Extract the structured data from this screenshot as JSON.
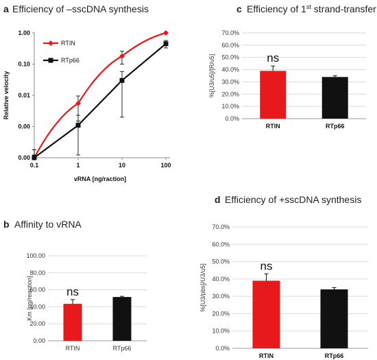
{
  "panels": {
    "a": {
      "letter": "a",
      "title": "Efficiency of –sscDNA synthesis"
    },
    "b": {
      "letter": "b",
      "title": "Affinity to vRNA"
    },
    "c": {
      "letter": "c",
      "title_main": "Efficiency of 1",
      "title_sup": "st",
      "title_rest": " strand-transfer"
    },
    "d": {
      "letter": "d",
      "title": "Efficiency of +sscDNA synthesis"
    }
  },
  "colors": {
    "RTIN": "#e8191b",
    "RTp66": "#111111",
    "gridline": "#d9d9d9"
  },
  "chart_data": [
    {
      "id": "a",
      "type": "line",
      "title": "Efficiency of –sscDNA synthesis",
      "xlabel": "vRNA [ng/raction]",
      "ylabel": "Relative velocity",
      "xscale": "log",
      "yscale": "log",
      "x_ticks": [
        "0.1",
        "1",
        "10",
        "100"
      ],
      "y_ticks": [
        "0.00",
        "0.00",
        "0.01",
        "0.10",
        "1.00"
      ],
      "x": [
        0.1,
        1,
        10,
        100
      ],
      "series": [
        {
          "name": "RTIN",
          "values": [
            0.0001,
            0.0055,
            0.18,
            1.0
          ],
          "error": [
            8e-05,
            0.004,
            0.08,
            0.0
          ],
          "marker": "diamond"
        },
        {
          "name": "RTp66",
          "values": [
            0.0001,
            0.0011,
            0.03,
            0.45
          ],
          "error": [
            8e-05,
            0.0012,
            0.028,
            0.12
          ],
          "marker": "square"
        }
      ],
      "legend_position": "top-left",
      "grid": false
    },
    {
      "id": "b",
      "type": "bar",
      "title": "Affinity to vRNA",
      "ylabel": "Km [ng/reaction]",
      "categories": [
        "RTIN",
        "RTp66"
      ],
      "values": [
        43.5,
        51.5
      ],
      "error": [
        5.0,
        0.8
      ],
      "y_ticks": [
        "0.00",
        "20.00",
        "40.00",
        "60.00",
        "80.00",
        "100.00"
      ],
      "ylim": [
        0,
        100
      ],
      "annotation": "ns",
      "grid": true
    },
    {
      "id": "c",
      "type": "bar",
      "title": "Efficiency of 1st strand-transfer",
      "ylabel": "%[U3/u5]/[R/u5]",
      "categories": [
        "RTIN",
        "RTp66"
      ],
      "values": [
        39.0,
        34.0
      ],
      "error": [
        4.0,
        1.0
      ],
      "y_ticks": [
        "0.0%",
        "10.0%",
        "20.0%",
        "30.0%",
        "40.0%",
        "50.0%",
        "60.0%",
        "70.0%"
      ],
      "ylim": [
        0,
        70
      ],
      "annotation": "ns",
      "grid": true
    },
    {
      "id": "d",
      "type": "bar",
      "title": "Efficiency of +sscDNA synthesis",
      "ylabel": "%[U3/pbs]/U3/u5]",
      "categories": [
        "RTIN",
        "RTp66"
      ],
      "values": [
        39.0,
        34.0
      ],
      "error": [
        4.0,
        1.0
      ],
      "y_ticks": [
        "0.0%",
        "10.0%",
        "20.0%",
        "30.0%",
        "40.0%",
        "50.0%",
        "60.0%",
        "70.0%"
      ],
      "ylim": [
        0,
        70
      ],
      "annotation": "ns",
      "grid": true
    }
  ]
}
